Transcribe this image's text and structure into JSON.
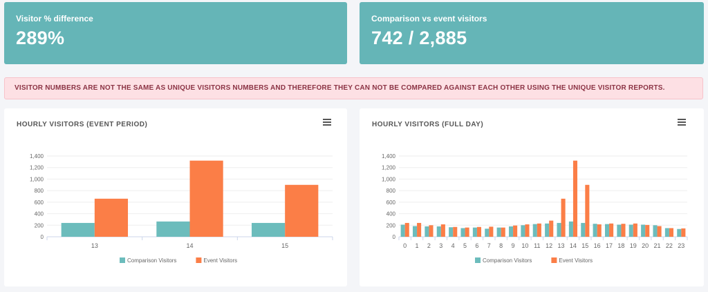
{
  "stats": [
    {
      "label": "Visitor % difference",
      "value": "289%"
    },
    {
      "label": "Comparison vs event visitors",
      "value": "742 / 2,885"
    }
  ],
  "alert": "VISITOR NUMBERS ARE NOT THE SAME AS UNIQUE VISITORS NUMBERS AND THEREFORE THEY CAN NOT BE COMPARED AGAINST EACH OTHER USING THE UNIQUE VISITOR REPORTS.",
  "colors": {
    "comparison": "#6cbcbc",
    "event": "#fb7e47",
    "card": "#65b5b7"
  },
  "panels": {
    "event": {
      "title": "HOURLY VISITORS (EVENT PERIOD)",
      "menu_icon": "hamburger-icon"
    },
    "full": {
      "title": "HOURLY VISITORS (FULL DAY)",
      "menu_icon": "hamburger-icon"
    }
  },
  "chart_data": [
    {
      "type": "bar",
      "categories": [
        "13",
        "14",
        "15"
      ],
      "series": [
        {
          "name": "Comparison Visitors",
          "values": [
            240,
            265,
            240
          ]
        },
        {
          "name": "Event Visitors",
          "values": [
            660,
            1320,
            900
          ]
        }
      ],
      "ylim": [
        0,
        1400
      ],
      "yticks": [
        "0",
        "200",
        "400",
        "600",
        "800",
        "1,000",
        "1,200",
        "1,400"
      ],
      "legend": "bottom"
    },
    {
      "type": "bar",
      "categories": [
        "0",
        "1",
        "2",
        "3",
        "4",
        "5",
        "6",
        "7",
        "8",
        "9",
        "10",
        "11",
        "12",
        "13",
        "14",
        "15",
        "16",
        "17",
        "18",
        "19",
        "20",
        "21",
        "22",
        "23"
      ],
      "series": [
        {
          "name": "Comparison Visitors",
          "values": [
            210,
            185,
            180,
            180,
            165,
            150,
            160,
            140,
            160,
            180,
            200,
            220,
            230,
            240,
            265,
            240,
            225,
            220,
            210,
            210,
            210,
            200,
            150,
            135
          ]
        },
        {
          "name": "Event Visitors",
          "values": [
            240,
            240,
            200,
            215,
            170,
            160,
            170,
            175,
            160,
            195,
            215,
            230,
            280,
            660,
            1320,
            900,
            215,
            230,
            225,
            230,
            205,
            185,
            150,
            145
          ]
        }
      ],
      "ylim": [
        0,
        1400
      ],
      "yticks": [
        "0",
        "200",
        "400",
        "600",
        "800",
        "1,000",
        "1,200",
        "1,400"
      ],
      "legend": "bottom"
    }
  ]
}
